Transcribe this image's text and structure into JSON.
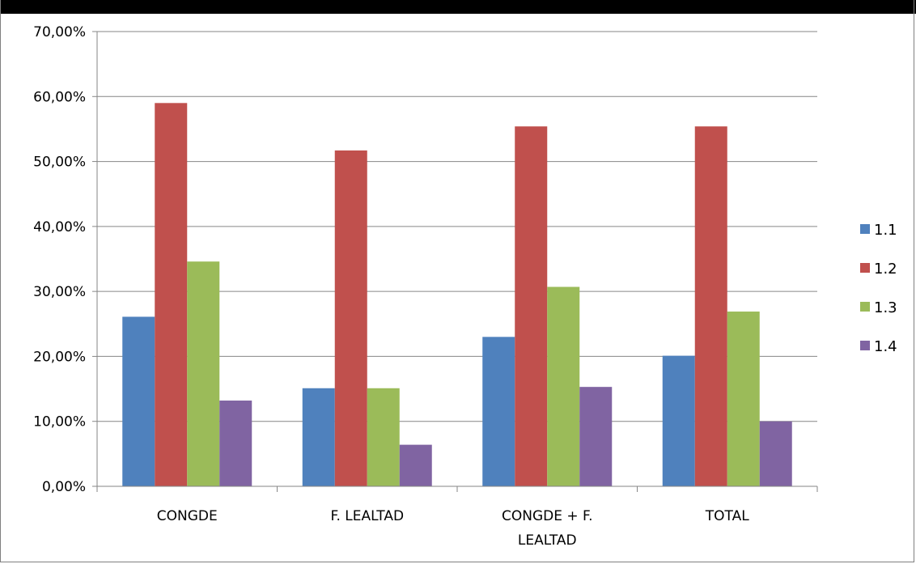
{
  "chart_data": {
    "type": "bar",
    "title": "",
    "xlabel": "",
    "ylabel": "",
    "categories": [
      "CONGDE",
      "F. LEALTAD",
      "CONGDE + F. LEALTAD",
      "TOTAL"
    ],
    "category_label_lines": [
      [
        "CONGDE"
      ],
      [
        "F. LEALTAD"
      ],
      [
        "CONGDE + F.",
        "LEALTAD"
      ],
      [
        "TOTAL"
      ]
    ],
    "series": [
      {
        "name": "1.1",
        "color": "#4f81bd",
        "values": [
          26.1,
          15.1,
          23.0,
          20.1
        ]
      },
      {
        "name": "1.2",
        "color": "#c0504d",
        "values": [
          59.0,
          51.7,
          55.4,
          55.4
        ]
      },
      {
        "name": "1.3",
        "color": "#9bbb59",
        "values": [
          34.6,
          15.1,
          30.7,
          26.9
        ]
      },
      {
        "name": "1.4",
        "color": "#8064a2",
        "values": [
          13.2,
          6.4,
          15.3,
          10.0
        ]
      }
    ],
    "ylim": [
      0,
      70
    ],
    "y_ticks": [
      0,
      10,
      20,
      30,
      40,
      50,
      60,
      70
    ],
    "y_tick_labels": [
      "0,00%",
      "10,00%",
      "20,00%",
      "30,00%",
      "40,00%",
      "50,00%",
      "60,00%",
      "70,00%"
    ],
    "grid": true,
    "legend_position": "right"
  }
}
